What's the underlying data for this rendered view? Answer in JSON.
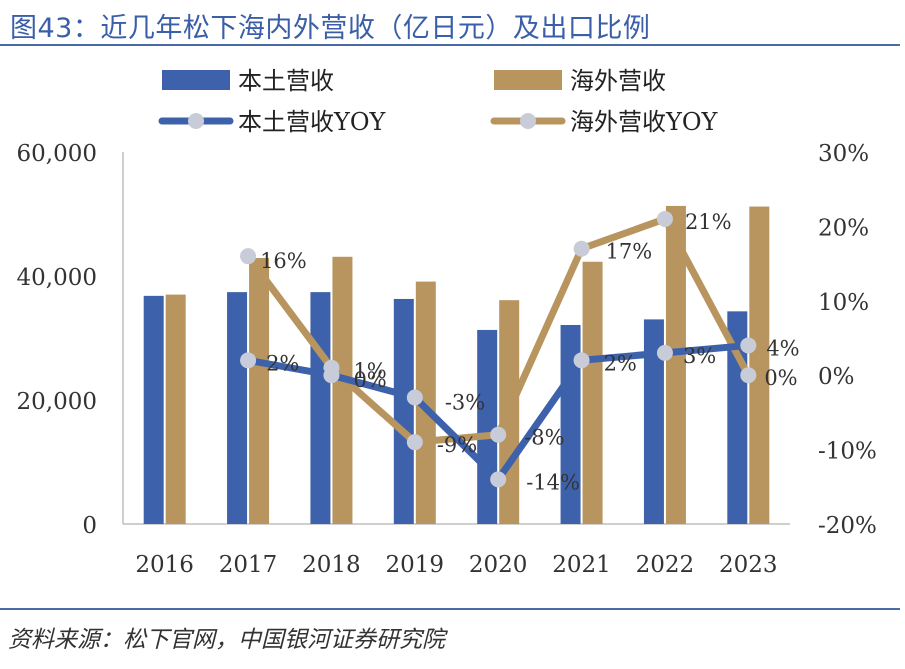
{
  "title": "图43：近几年松下海内外营收（亿日元）及出口比例",
  "source": "资料来源：松下官网，中国银河证券研究院",
  "colors": {
    "domestic": "#3d62ab",
    "overseas": "#b8955e",
    "marker": "#c8ccd8",
    "title": "#3a5ea8",
    "rule": "#4a6aa8"
  },
  "chart_data": {
    "type": "bar",
    "categories": [
      "2016",
      "2017",
      "2018",
      "2019",
      "2020",
      "2021",
      "2022",
      "2023"
    ],
    "series": [
      {
        "name": "本土营收",
        "kind": "bar",
        "axis": "left",
        "values": [
          36800,
          37400,
          37400,
          36300,
          31300,
          32100,
          33000,
          34300
        ]
      },
      {
        "name": "海外营收",
        "kind": "bar",
        "axis": "left",
        "values": [
          37000,
          42900,
          43100,
          39100,
          36100,
          42300,
          51300,
          51200
        ]
      },
      {
        "name": "本土营收YOY",
        "kind": "line",
        "axis": "right",
        "values": [
          null,
          2,
          0,
          -3,
          -14,
          2,
          3,
          4
        ],
        "labels": [
          "",
          "2%",
          "0%",
          "-3%",
          "-14%",
          "2%",
          "3%",
          "4%"
        ]
      },
      {
        "name": "海外营收YOY",
        "kind": "line",
        "axis": "right",
        "values": [
          null,
          16,
          1,
          -9,
          -8,
          17,
          21,
          0
        ],
        "labels": [
          "",
          "16%",
          "1%",
          "-9%",
          "-8%",
          "17%",
          "21%",
          "0%"
        ]
      }
    ],
    "left_axis": {
      "min": 0,
      "max": 60000,
      "ticks": [
        "0",
        "20,000",
        "40,000",
        "60,000"
      ]
    },
    "right_axis": {
      "min": -20,
      "max": 30,
      "ticks": [
        "-20%",
        "-10%",
        "0%",
        "10%",
        "20%",
        "30%"
      ]
    },
    "legend_position": "top"
  }
}
